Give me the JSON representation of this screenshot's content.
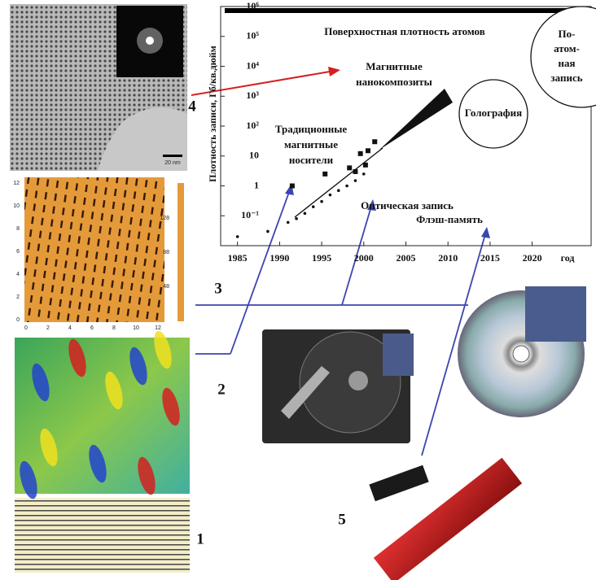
{
  "chart_data": {
    "type": "scatter",
    "ylabel": "Плотность записи, Гб/кв.дюйм",
    "xlabel": "год",
    "log_y": true,
    "xlim": [
      1983,
      2027
    ],
    "ylim": [
      0.01,
      1000000
    ],
    "xticks": [
      1985,
      1990,
      1995,
      2000,
      2005,
      2010,
      2015,
      2020
    ],
    "yticks": [
      {
        "value": 0.1,
        "label": "10⁻¹"
      },
      1,
      10,
      {
        "value": 100,
        "label": "10²"
      },
      {
        "value": 1000,
        "label": "10³"
      },
      {
        "value": 10000,
        "label": "10⁴"
      },
      {
        "value": 100000,
        "label": "10⁵"
      },
      {
        "value": 1000000,
        "label": "10⁶"
      }
    ],
    "series": [
      {
        "marker": "square",
        "color": "#111111",
        "x": [
          1991.5,
          1995.4,
          1998.3,
          1999.6,
          2000.5,
          2001.3,
          2000.2,
          1999.0
        ],
        "values": [
          1,
          2.5,
          4,
          12,
          15,
          30,
          5,
          3
        ]
      },
      {
        "marker": "dot",
        "color": "#111111",
        "x": [
          1985,
          1988.6,
          1991,
          1992,
          1993,
          1994,
          1995,
          1996,
          1997,
          1998,
          1999,
          2000
        ],
        "values": [
          0.02,
          0.03,
          0.06,
          0.08,
          0.12,
          0.2,
          0.3,
          0.5,
          0.7,
          1,
          1.5,
          2.5
        ]
      }
    ],
    "annotations": [
      {
        "lines": [
          "Поверхностная плотность атомов"
        ]
      },
      {
        "lines": [
          "Магнитные",
          "нанокомпозиты"
        ]
      },
      {
        "lines": [
          "Традиционные",
          "магнитные",
          "носители"
        ]
      },
      {
        "lines": [
          "Голография"
        ]
      },
      {
        "lines": [
          "По-",
          "атом-",
          "ная",
          "запись"
        ]
      },
      {
        "lines": [
          "Оптическая запись"
        ]
      },
      {
        "lines": [
          "Флэш-память"
        ]
      }
    ]
  },
  "panel_numbers": [
    "1",
    "2",
    "3",
    "4",
    "5"
  ],
  "tem_image": {
    "scale_bar": "20 nm"
  },
  "afm_image": {
    "y_labels": [
      "12",
      "10",
      "8",
      "6",
      "4",
      "2",
      "0"
    ],
    "x_labels": [
      "0",
      "2",
      "4",
      "6",
      "8",
      "10",
      "12"
    ],
    "colorbar_labels": [
      "128",
      "88",
      "48"
    ]
  }
}
